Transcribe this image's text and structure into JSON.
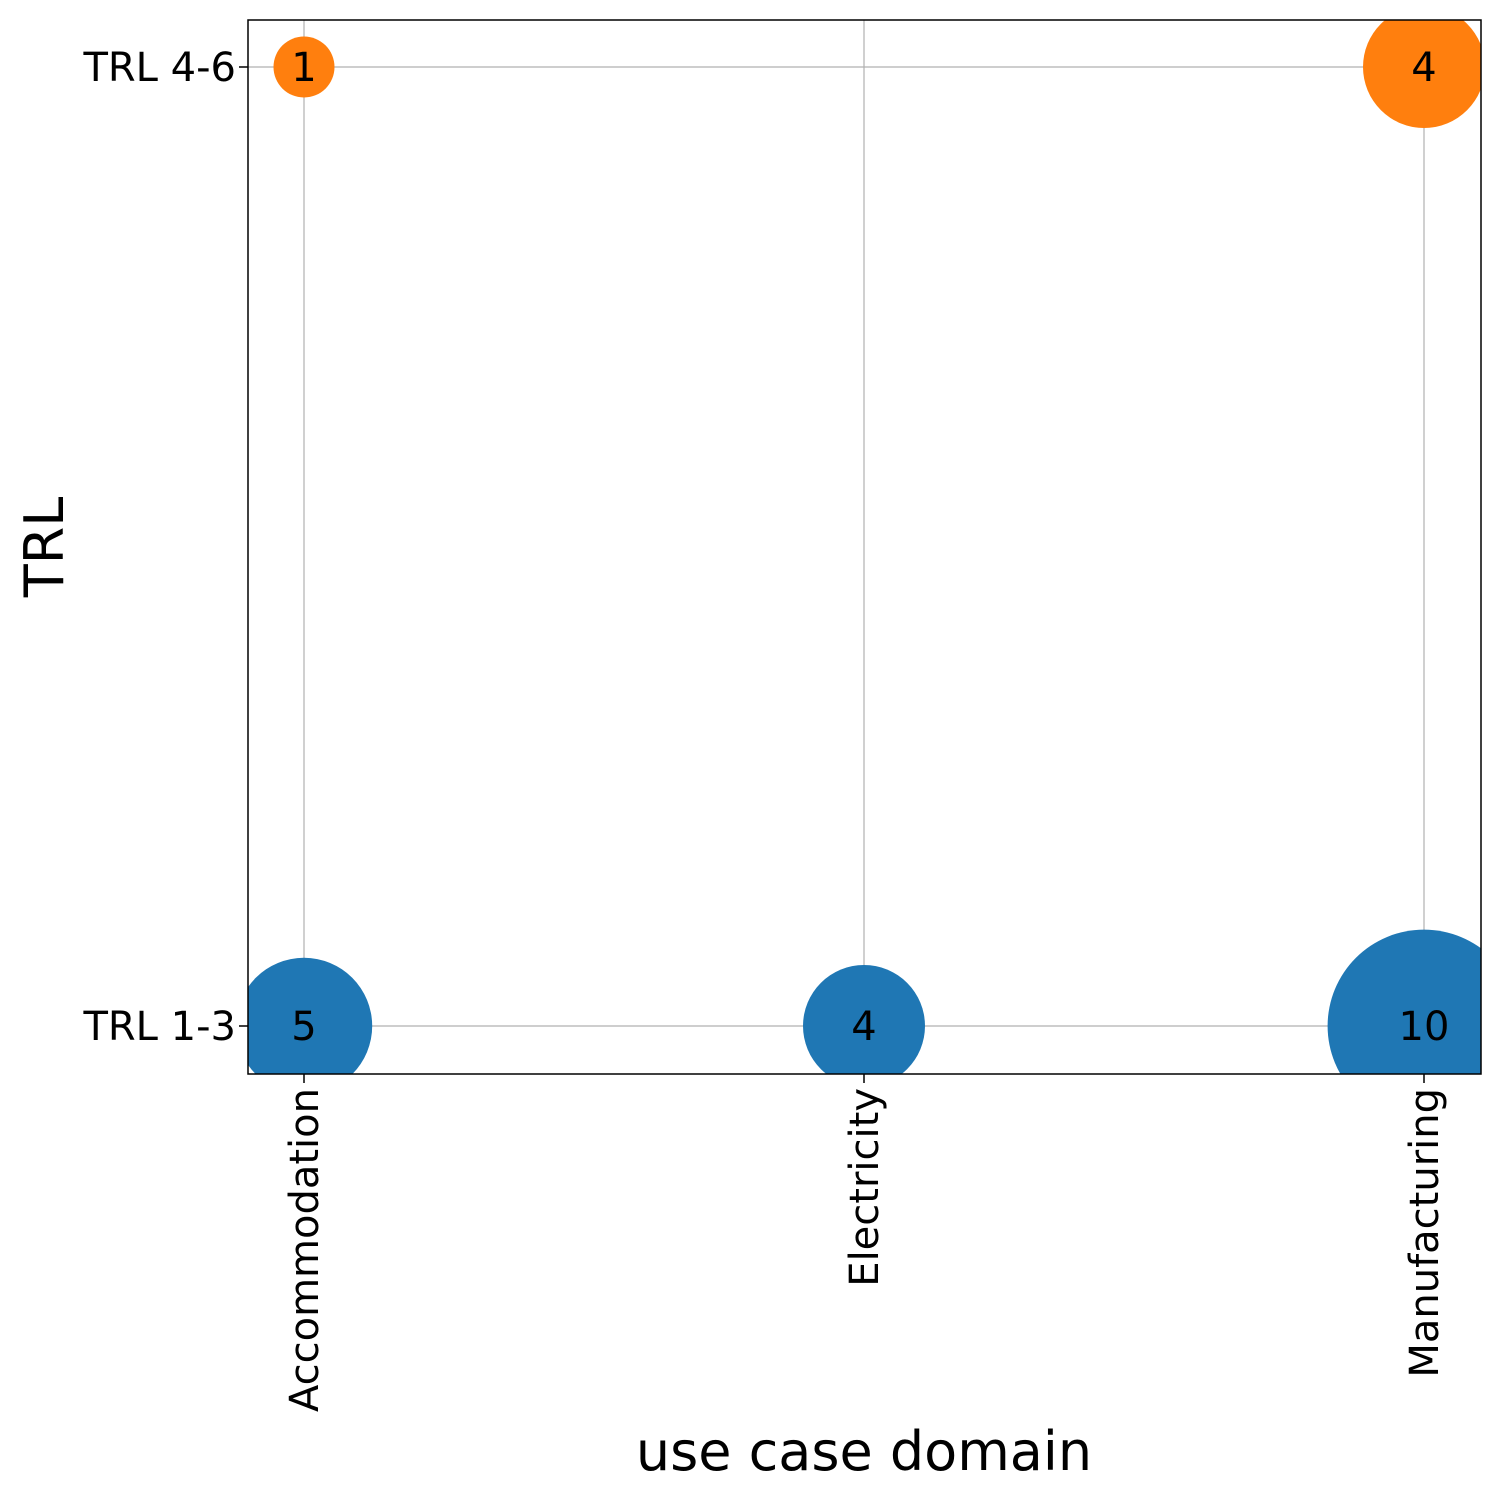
{
  "chart_data": {
    "type": "scatter",
    "subtype": "bubble",
    "title": "",
    "xlabel": "use case domain",
    "ylabel": "TRL",
    "categories": [
      "Accommodation",
      "Electricity",
      "Manufacturing"
    ],
    "y_categories": [
      "TRL 1-3",
      "TRL 4-6"
    ],
    "grid": true,
    "series": [
      {
        "name": "TRL 1-3",
        "color": "#1f77b4",
        "points": [
          {
            "x": "Accommodation",
            "y": "TRL 1-3",
            "value": 5,
            "label": "5"
          },
          {
            "x": "Electricity",
            "y": "TRL 1-3",
            "value": 4,
            "label": "4"
          },
          {
            "x": "Manufacturing",
            "y": "TRL 1-3",
            "value": 10,
            "label": "10"
          }
        ]
      },
      {
        "name": "TRL 4-6",
        "color": "#ff7f0e",
        "points": [
          {
            "x": "Accommodation",
            "y": "TRL 4-6",
            "value": 1,
            "label": "1"
          },
          {
            "x": "Manufacturing",
            "y": "TRL 4-6",
            "value": 4,
            "label": "4"
          }
        ]
      }
    ]
  }
}
